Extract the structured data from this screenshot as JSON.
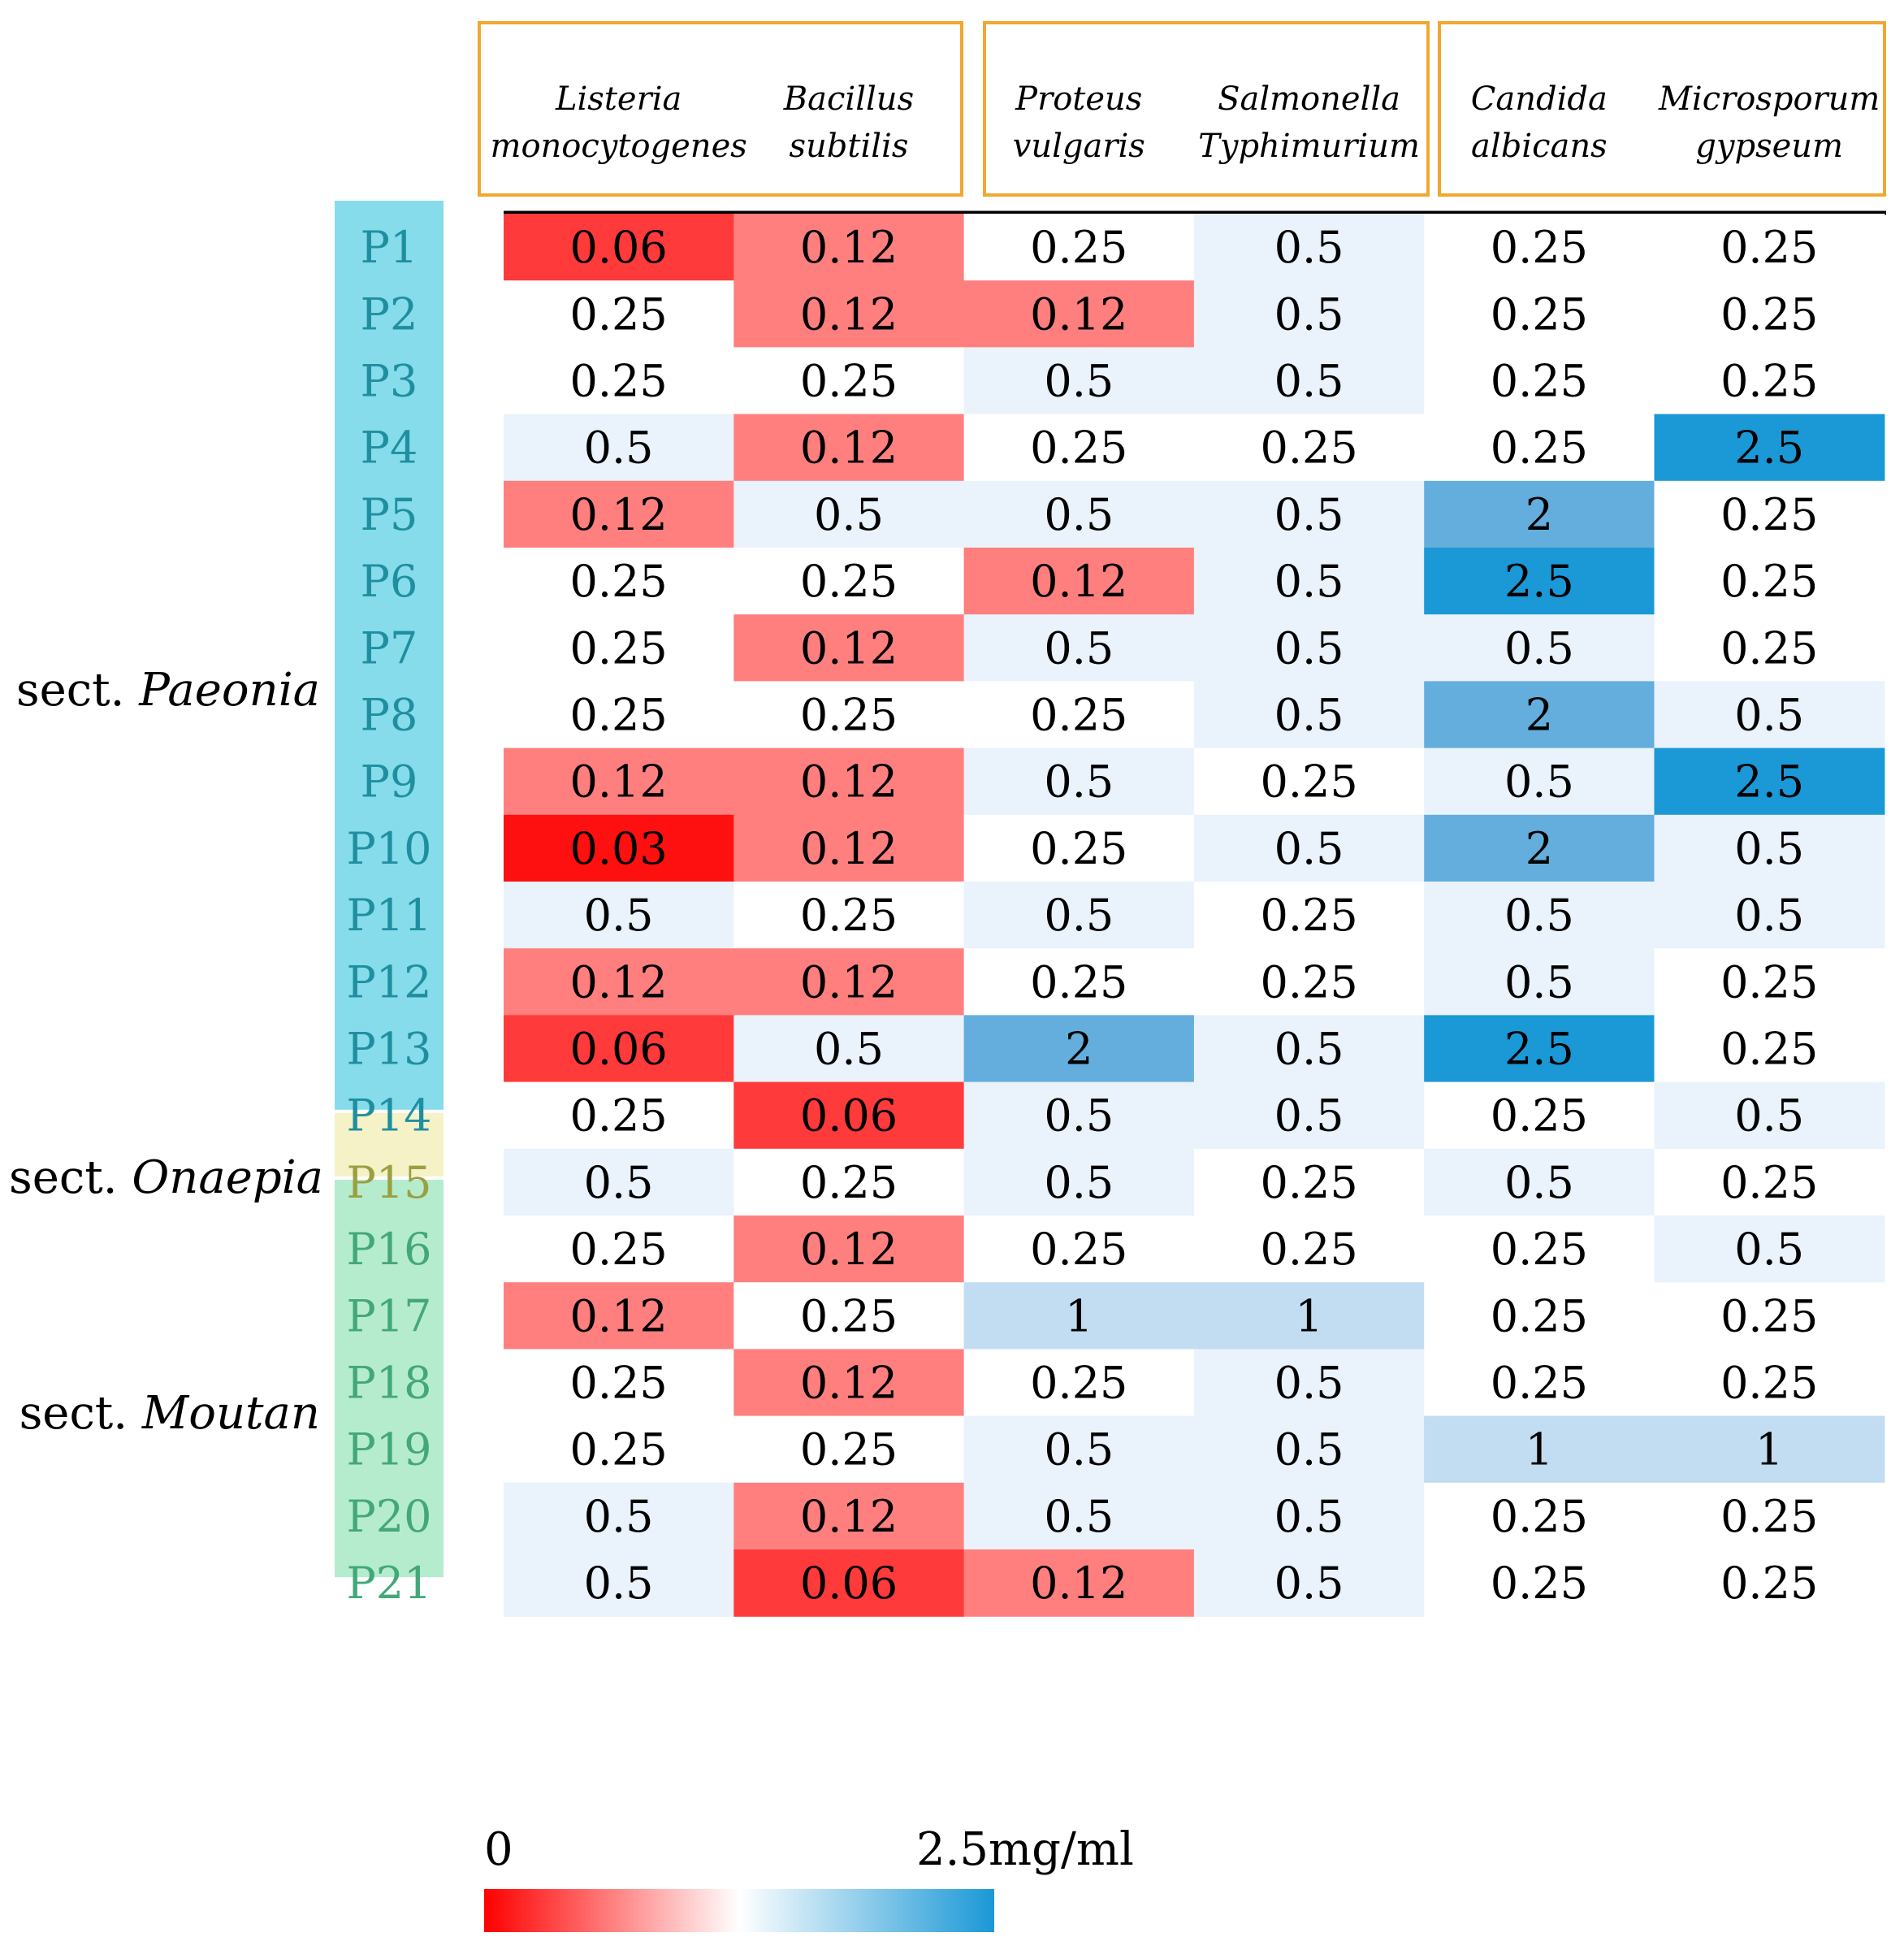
{
  "chart_data": {
    "type": "heatmap",
    "columns": [
      "Listeria monocytogenes",
      "Bacillus subtilis",
      "Proteus vulgaris",
      "Salmonella Typhimurium",
      "Candida albicans",
      "Microsporum gypseum"
    ],
    "column_header_lines": [
      [
        "Listeria",
        "monocytogenes"
      ],
      [
        "Bacillus",
        "subtilis"
      ],
      [
        "Proteus",
        "vulgaris"
      ],
      [
        "Salmonella",
        "Typhimurium"
      ],
      [
        "Candida",
        "albicans"
      ],
      [
        "Microsporum",
        "gypseum"
      ]
    ],
    "column_groups": [
      [
        0,
        1
      ],
      [
        2,
        3
      ],
      [
        4,
        5
      ]
    ],
    "rows": [
      "P1",
      "P2",
      "P3",
      "P4",
      "P5",
      "P6",
      "P7",
      "P8",
      "P9",
      "P10",
      "P11",
      "P12",
      "P13",
      "P14",
      "P15",
      "P16",
      "P17",
      "P18",
      "P19",
      "P20",
      "P21"
    ],
    "values": [
      [
        0.06,
        0.12,
        0.25,
        0.5,
        0.25,
        0.25
      ],
      [
        0.25,
        0.12,
        0.12,
        0.5,
        0.25,
        0.25
      ],
      [
        0.25,
        0.25,
        0.5,
        0.5,
        0.25,
        0.25
      ],
      [
        0.5,
        0.12,
        0.25,
        0.25,
        0.25,
        2.5
      ],
      [
        0.12,
        0.5,
        0.5,
        0.5,
        2,
        0.25
      ],
      [
        0.25,
        0.25,
        0.12,
        0.5,
        2.5,
        0.25
      ],
      [
        0.25,
        0.12,
        0.5,
        0.5,
        0.5,
        0.25
      ],
      [
        0.25,
        0.25,
        0.25,
        0.5,
        2,
        0.5
      ],
      [
        0.12,
        0.12,
        0.5,
        0.25,
        0.5,
        2.5
      ],
      [
        0.03,
        0.12,
        0.25,
        0.5,
        2,
        0.5
      ],
      [
        0.5,
        0.25,
        0.5,
        0.25,
        0.5,
        0.5
      ],
      [
        0.12,
        0.12,
        0.25,
        0.25,
        0.5,
        0.25
      ],
      [
        0.06,
        0.5,
        2,
        0.5,
        2.5,
        0.25
      ],
      [
        0.25,
        0.06,
        0.5,
        0.5,
        0.25,
        0.5
      ],
      [
        0.5,
        0.25,
        0.5,
        0.25,
        0.5,
        0.25
      ],
      [
        0.25,
        0.12,
        0.25,
        0.25,
        0.25,
        0.5
      ],
      [
        0.12,
        0.25,
        1,
        1,
        0.25,
        0.25
      ],
      [
        0.25,
        0.12,
        0.25,
        0.5,
        0.25,
        0.25
      ],
      [
        0.25,
        0.25,
        0.5,
        0.5,
        1,
        1
      ],
      [
        0.5,
        0.12,
        0.5,
        0.5,
        0.25,
        0.25
      ],
      [
        0.5,
        0.06,
        0.12,
        0.5,
        0.25,
        0.25
      ]
    ],
    "row_groups": [
      {
        "prefix": "sect. ",
        "name": "Paeonia",
        "rows": [
          0,
          13
        ],
        "label_color": "#1f8fa0",
        "band_color": "#86dcea"
      },
      {
        "prefix": "sect. ",
        "name": "Onaepia",
        "rows": [
          14,
          14
        ],
        "label_color": "#9aa040",
        "band_color": "#f5f2c8"
      },
      {
        "prefix": "sect. ",
        "name": "Moutan",
        "rows": [
          15,
          20
        ],
        "label_color": "#43a878",
        "band_color": "#b6ecce"
      }
    ],
    "value_colors": {
      "0.03": "#ff1010",
      "0.06": "#ff3a3a",
      "0.12": "#ff7f7f",
      "0.25": "#ffffff",
      "0.5": "#eaf2fb",
      "1": "#c2dcf1",
      "2": "#63aedc",
      "2.5": "#1b98d6"
    },
    "colorbar": {
      "min_label": "0",
      "max_label": "2.5mg/ml",
      "min": 0,
      "max": 2.5,
      "colors": [
        "#ff0000",
        "#ffffff",
        "#1b98d6"
      ]
    },
    "header_box_color": "#f0a830"
  }
}
